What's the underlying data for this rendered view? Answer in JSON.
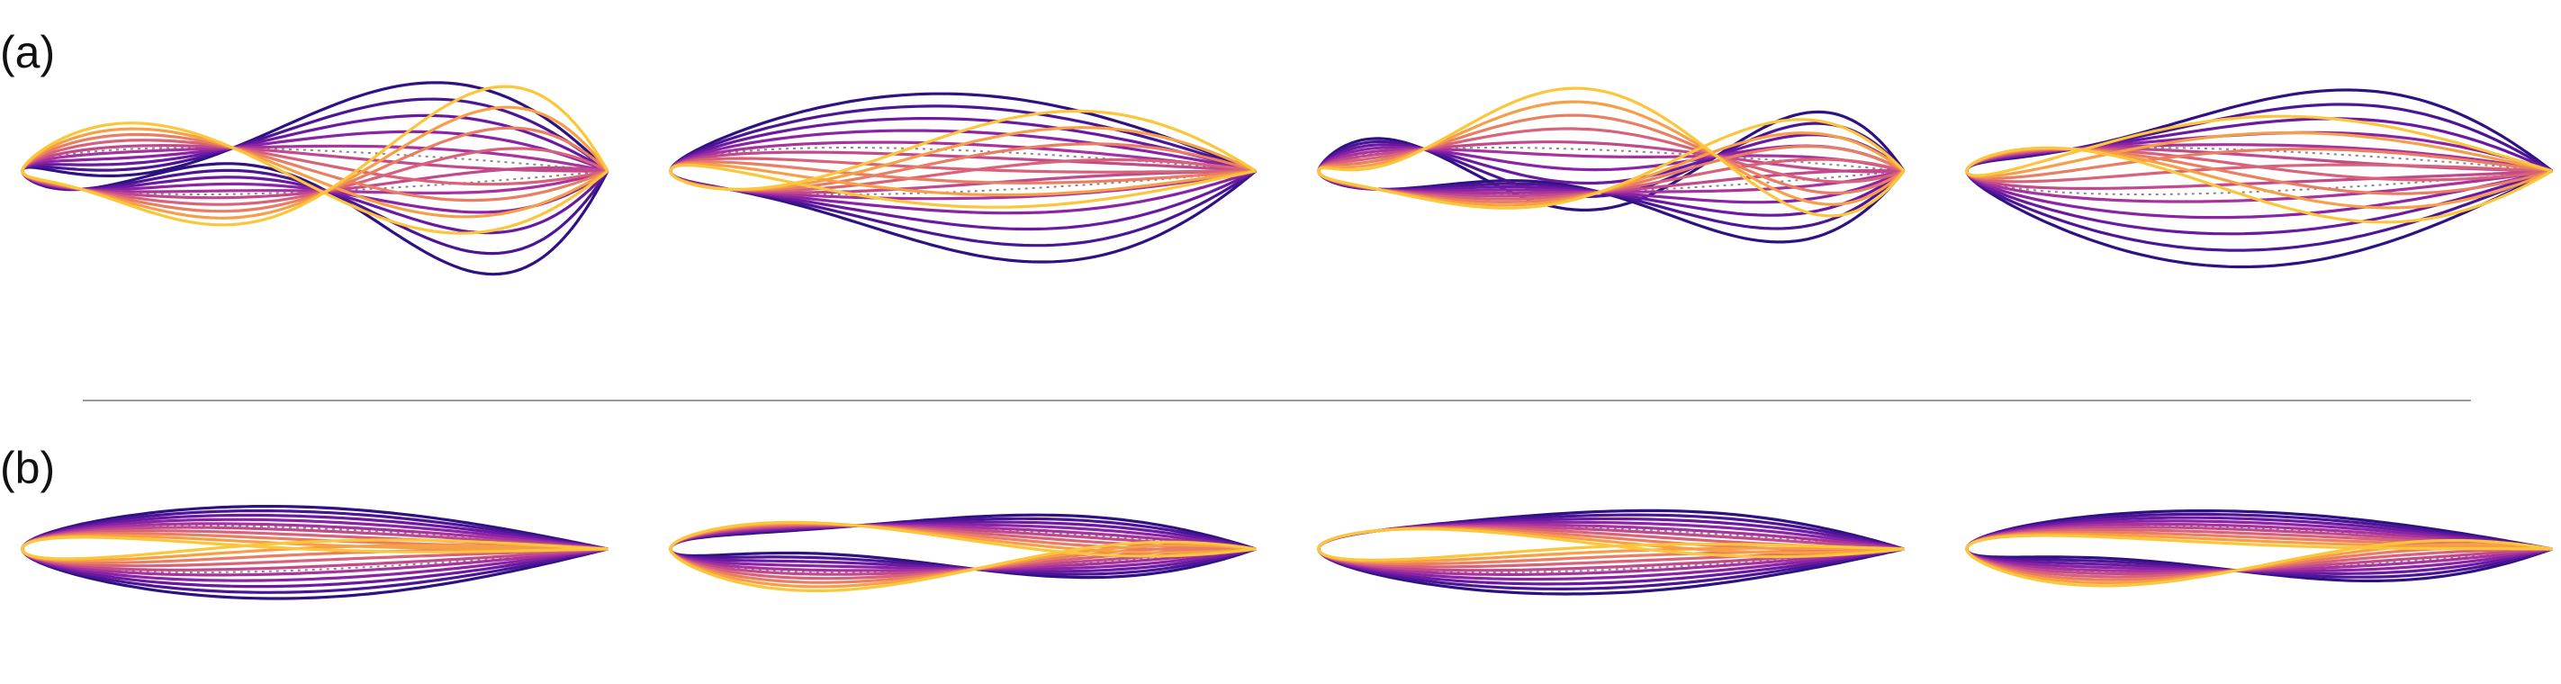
{
  "labels": {
    "row_a": "(a)",
    "row_b": "(b)"
  },
  "colors": {
    "ramp": [
      "#2e1182",
      "#4c1595",
      "#6a1aa2",
      "#8a23a6",
      "#a8339e",
      "#c14a8c",
      "#d8627a",
      "#ea7d62",
      "#f79f47",
      "#fcc63a"
    ],
    "baseline": "#888888",
    "divider": "#9a9a9a"
  },
  "row_a": [
    {
      "upper_nodes": [
        0.36
      ],
      "lower_nodes": [
        0.1,
        0.52
      ],
      "upper_amp": 0.16,
      "lower_amp": 0.2
    },
    {
      "upper_nodes": [],
      "lower_nodes": [
        0.1
      ],
      "upper_amp": 0.12,
      "lower_amp": 0.16
    },
    {
      "upper_nodes": [
        0.18,
        0.68
      ],
      "lower_nodes": [
        0.1,
        0.48
      ],
      "upper_amp": 0.13,
      "lower_amp": 0.13
    },
    {
      "upper_nodes": [
        0.18
      ],
      "lower_nodes": [],
      "upper_amp": 0.14,
      "lower_amp": 0.16
    }
  ],
  "row_b": [
    {
      "upper_nodes": [],
      "lower_nodes": [],
      "upper_amp": 0.045,
      "lower_amp": 0.06
    },
    {
      "upper_nodes": [
        0.32
      ],
      "lower_nodes": [
        0.52
      ],
      "upper_amp": 0.04,
      "lower_amp": 0.04
    },
    {
      "upper_nodes": [
        0.1
      ],
      "lower_nodes": [],
      "upper_amp": 0.045,
      "lower_amp": 0.05
    },
    {
      "upper_nodes": [],
      "lower_nodes": [
        0.46
      ],
      "upper_amp": 0.035,
      "lower_amp": 0.04
    }
  ]
}
